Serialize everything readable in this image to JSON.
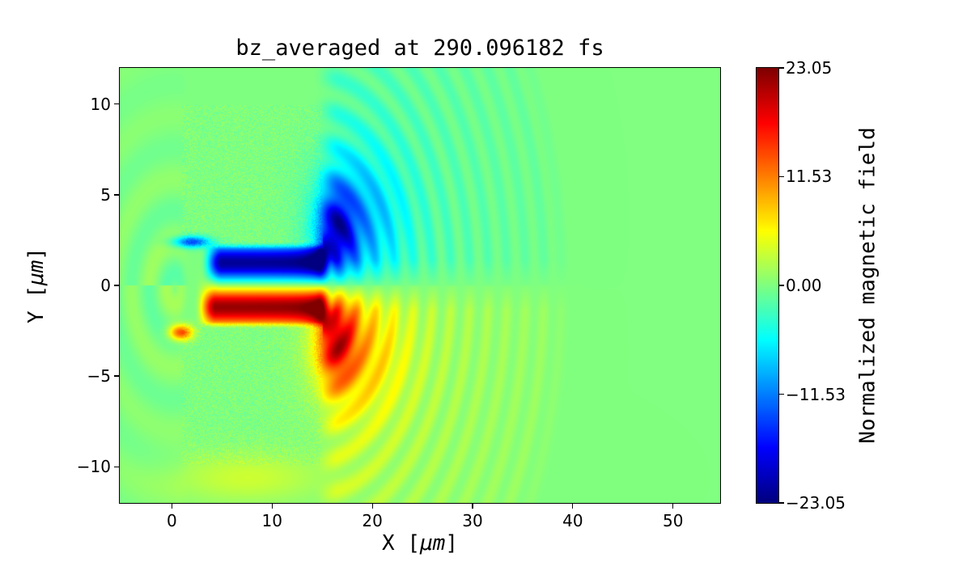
{
  "chart_data": {
    "type": "heatmap",
    "title": "bz_averaged at 290.096182 fs",
    "xlabel": "X [μm]",
    "ylabel": "Y [μm]",
    "xlabel_parts": {
      "prefix": "X [",
      "unit": "μm",
      "suffix": "]"
    },
    "ylabel_parts": {
      "prefix": "Y [",
      "unit": "μm",
      "suffix": "]"
    },
    "xlim": [
      -5.2,
      54.7
    ],
    "ylim": [
      -12.0,
      12.0
    ],
    "x_ticks": [
      0,
      10,
      20,
      30,
      40,
      50
    ],
    "x_tick_labels": [
      "0",
      "10",
      "20",
      "30",
      "40",
      "50"
    ],
    "y_ticks": [
      10,
      5,
      0,
      -5,
      -10
    ],
    "y_tick_labels": [
      "10",
      "5",
      "0",
      "−5",
      "−10"
    ],
    "colormap": "jet",
    "clim": [
      -23.05,
      23.05
    ],
    "colorbar": {
      "label": "Normalized magnetic field",
      "ticks": [
        23.05,
        11.53,
        0.0,
        -11.53,
        -23.05
      ],
      "tick_labels": [
        "23.05",
        "11.53",
        "0.00",
        "−11.53",
        "−23.05"
      ]
    },
    "background_value": 0,
    "features": {
      "description": "PIC simulation: two plasma target blocks with a central channel; bipolar magnetic field lobes in the channel (negative/blue above axis, positive/red below) and outgoing wavefront arcs to the right (cyan above axis, yellow below), extending to x ≈ 41 μm.",
      "target_blocks": [
        {
          "x": [
            1.0,
            15.0
          ],
          "y": [
            2.1,
            9.95
          ],
          "noise_amp": 1.5
        },
        {
          "x": [
            1.0,
            15.0
          ],
          "y": [
            -9.9,
            -2.1
          ],
          "noise_amp": 1.5
        }
      ],
      "channel_lobes": [
        {
          "y_center": 1.25,
          "y_sigma": 0.7,
          "x_range": [
            2.8,
            15.2
          ],
          "amplitude": -22
        },
        {
          "y_center": -1.2,
          "y_sigma": 0.72,
          "x_range": [
            2.2,
            15.2
          ],
          "amplitude": 22
        }
      ],
      "spots": [
        {
          "name": "upper-corner-plume",
          "x": 16.3,
          "x_sigma": 1.4,
          "y": 2.8,
          "y_sigma": 1.8,
          "amplitude": -13
        },
        {
          "name": "lower-corner-plume",
          "x": 16.3,
          "x_sigma": 1.4,
          "y": -2.8,
          "y_sigma": 1.8,
          "amplitude": 13
        },
        {
          "name": "upper-cyan-fan",
          "x": 18.5,
          "x_sigma": 3.2,
          "y": 3.4,
          "y_sigma": 2.7,
          "amplitude": -7
        },
        {
          "name": "lower-yellow-fan",
          "x": 18.5,
          "x_sigma": 3.2,
          "y": -3.4,
          "y_sigma": 2.7,
          "amplitude": 6
        },
        {
          "name": "upper-left-filament",
          "x": 2.0,
          "x_sigma": 1.3,
          "y": 2.4,
          "y_sigma": 0.22,
          "amplitude": -14
        },
        {
          "name": "lower-left-red-spot",
          "x": 0.9,
          "x_sigma": 0.8,
          "y": -2.6,
          "y_sigma": 0.3,
          "amplitude": 15
        },
        {
          "name": "bottom-yellow-band",
          "x": 7.5,
          "x_sigma": 5.5,
          "y": -10.6,
          "y_sigma": 1.0,
          "amplitude": 3.5
        }
      ],
      "wave": {
        "center": [
          14.5,
          0.0
        ],
        "amplitude": 8,
        "decay": 13,
        "ring_freq": 3.4,
        "max_radius": 26.5
      },
      "left_ripples": {
        "center": [
          0.3,
          -0.2
        ],
        "amplitude": 2,
        "decay": 7,
        "ring_freq": 1.8
      }
    }
  }
}
